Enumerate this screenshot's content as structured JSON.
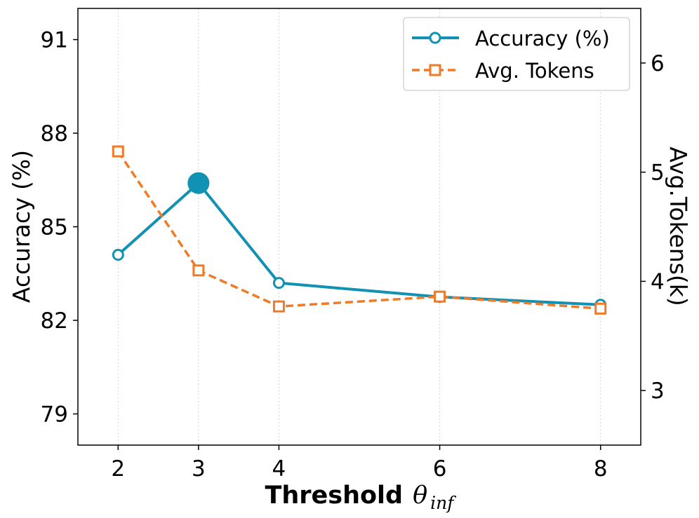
{
  "chart_data": {
    "type": "line",
    "title": "",
    "xlabel": "Threshold",
    "xlabel_symbol": "θ",
    "xlabel_subscript": "inf",
    "ylabel_left": "Accuracy (%)",
    "ylabel_right": "Avg.Tokens(k)",
    "categories": [
      "2",
      "3",
      "4",
      "6",
      "8"
    ],
    "x": [
      2,
      3,
      4,
      6,
      8
    ],
    "xlim": [
      1.5,
      8.5
    ],
    "ylim_left": [
      78,
      92
    ],
    "ylim_right": [
      2.5,
      6.5
    ],
    "yticks_left": [
      "79",
      "82",
      "85",
      "88",
      "91"
    ],
    "yticks_right": [
      "3",
      "4",
      "5",
      "6"
    ],
    "grid": "vertical dotted",
    "legend_position": "top-right",
    "series": [
      {
        "name": "Accuracy (%)",
        "axis": "left",
        "color": "#1192b3",
        "line_style": "solid",
        "marker": "circle",
        "values": [
          84.1,
          86.4,
          83.2,
          82.75,
          82.5
        ],
        "highlight_index": 1
      },
      {
        "name": "Avg. Tokens",
        "axis": "right",
        "color": "#f07a26",
        "line_style": "dashed",
        "marker": "square",
        "values": [
          5.19,
          4.1,
          3.77,
          3.86,
          3.75
        ]
      }
    ]
  }
}
